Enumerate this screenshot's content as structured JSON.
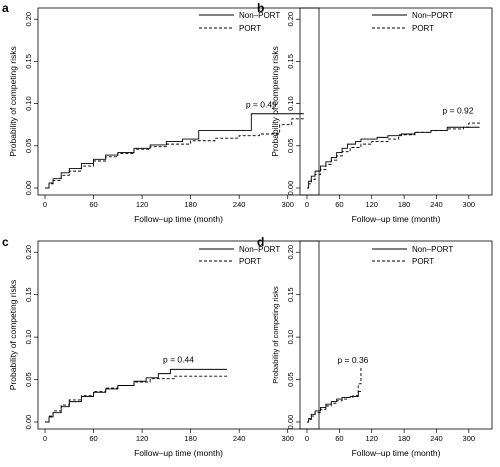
{
  "chart_data": [
    {
      "type": "line",
      "step": true,
      "panel": "a",
      "xlabel": "Follow–up time (month)",
      "ylabel": "Probability of competing risks",
      "xlim": [
        0,
        330
      ],
      "ylim": [
        0,
        0.205
      ],
      "xticks": [
        0,
        60,
        120,
        180,
        240,
        300
      ],
      "yticks": [
        0.0,
        0.05,
        0.1,
        0.15,
        0.2
      ],
      "ytick_labels": [
        "0.00",
        "0.05",
        "0.10",
        "0.15",
        "0.20"
      ],
      "legend": "top-right",
      "annotation": "p = 0.49",
      "series": [
        {
          "name": "Non–PORT",
          "dash": "solid",
          "x": [
            0,
            5,
            10,
            20,
            30,
            45,
            60,
            75,
            90,
            110,
            130,
            150,
            170,
            190,
            230,
            255,
            320
          ],
          "y": [
            0,
            0.006,
            0.011,
            0.018,
            0.023,
            0.029,
            0.034,
            0.039,
            0.042,
            0.047,
            0.051,
            0.055,
            0.058,
            0.068,
            0.068,
            0.088,
            0.088
          ]
        },
        {
          "name": "PORT",
          "dash": "dashed",
          "x": [
            0,
            5,
            10,
            20,
            30,
            45,
            60,
            75,
            90,
            110,
            130,
            150,
            180,
            210,
            240,
            265,
            290,
            305,
            320
          ],
          "y": [
            0,
            0.005,
            0.009,
            0.015,
            0.02,
            0.026,
            0.032,
            0.037,
            0.041,
            0.046,
            0.049,
            0.052,
            0.056,
            0.059,
            0.062,
            0.064,
            0.075,
            0.082,
            0.084
          ]
        }
      ]
    },
    {
      "type": "line",
      "step": true,
      "panel": "b",
      "xlabel": "Follow–up time (month)",
      "ylabel": "Probability of competing risks",
      "xlim": [
        0,
        330
      ],
      "ylim": [
        0,
        0.205
      ],
      "xticks": [
        0,
        60,
        120,
        180,
        240,
        300
      ],
      "yticks": [
        0.0,
        0.05,
        0.1,
        0.15,
        0.2
      ],
      "ytick_labels": [
        "0.00",
        "0.05",
        "0.10",
        "0.15",
        "0.20"
      ],
      "legend": "top-right",
      "annotation": "p = 0.92",
      "series": [
        {
          "name": "Non–PORT",
          "dash": "solid",
          "x": [
            0,
            3,
            8,
            15,
            25,
            35,
            45,
            55,
            65,
            75,
            90,
            100,
            130,
            150,
            175,
            200,
            230,
            260,
            320
          ],
          "y": [
            0,
            0.008,
            0.014,
            0.02,
            0.026,
            0.031,
            0.036,
            0.042,
            0.047,
            0.052,
            0.055,
            0.058,
            0.06,
            0.062,
            0.064,
            0.066,
            0.068,
            0.072,
            0.072
          ]
        },
        {
          "name": "PORT",
          "dash": "dashed",
          "x": [
            0,
            3,
            8,
            15,
            25,
            35,
            45,
            55,
            65,
            80,
            100,
            120,
            150,
            170,
            200,
            230,
            260,
            290,
            300,
            320
          ],
          "y": [
            0,
            0.005,
            0.01,
            0.016,
            0.022,
            0.028,
            0.033,
            0.038,
            0.043,
            0.048,
            0.052,
            0.055,
            0.058,
            0.063,
            0.066,
            0.068,
            0.07,
            0.072,
            0.077,
            0.08
          ]
        }
      ]
    },
    {
      "type": "line",
      "step": true,
      "panel": "c",
      "xlabel": "Follow–up time (month)",
      "ylabel": "Probability of competing risks",
      "xlim": [
        0,
        330
      ],
      "ylim": [
        0,
        0.205
      ],
      "xticks": [
        0,
        60,
        120,
        180,
        240,
        300
      ],
      "yticks": [
        0.0,
        0.05,
        0.1,
        0.15,
        0.2
      ],
      "ytick_labels": [
        "0.00",
        "0.05",
        "0.10",
        "0.15",
        "0.20"
      ],
      "legend": "top-right",
      "annotation": "p = 0.44",
      "series": [
        {
          "name": "Non–PORT",
          "dash": "solid",
          "x": [
            0,
            5,
            10,
            20,
            30,
            45,
            60,
            75,
            90,
            110,
            125,
            140,
            155,
            225
          ],
          "y": [
            0,
            0.006,
            0.011,
            0.018,
            0.024,
            0.03,
            0.035,
            0.039,
            0.043,
            0.048,
            0.052,
            0.057,
            0.062,
            0.062
          ]
        },
        {
          "name": "PORT",
          "dash": "dashed",
          "x": [
            0,
            5,
            10,
            20,
            30,
            45,
            60,
            75,
            90,
            110,
            130,
            160,
            225
          ],
          "y": [
            0,
            0.007,
            0.013,
            0.02,
            0.026,
            0.031,
            0.036,
            0.04,
            0.043,
            0.047,
            0.051,
            0.054,
            0.054
          ]
        }
      ]
    },
    {
      "type": "line",
      "step": true,
      "panel": "d",
      "xlabel": "Follow–up time (month)",
      "ylabel": "Probability of competing risks",
      "xlim": [
        0,
        330
      ],
      "ylim": [
        0,
        0.205
      ],
      "xticks": [
        0,
        60,
        120,
        180,
        240,
        300
      ],
      "yticks": [
        0.0,
        0.05,
        0.1,
        0.15,
        0.2
      ],
      "ytick_labels": [
        "0.00",
        "0.05",
        "0.10",
        "0.15",
        "0.20"
      ],
      "legend": "top-right",
      "annotation": "p = 0.36",
      "series": [
        {
          "name": "Non–PORT",
          "dash": "solid",
          "x": [
            0,
            3,
            8,
            15,
            25,
            35,
            45,
            55,
            65,
            80,
            95,
            100
          ],
          "y": [
            0,
            0.004,
            0.009,
            0.013,
            0.017,
            0.021,
            0.024,
            0.027,
            0.029,
            0.03,
            0.036,
            0.036
          ]
        },
        {
          "name": "PORT",
          "dash": "dashed",
          "x": [
            0,
            3,
            8,
            15,
            25,
            35,
            45,
            55,
            65,
            75,
            85,
            95,
            100
          ],
          "y": [
            0,
            0.003,
            0.007,
            0.011,
            0.015,
            0.019,
            0.022,
            0.025,
            0.027,
            0.029,
            0.031,
            0.045,
            0.066
          ]
        }
      ]
    }
  ]
}
